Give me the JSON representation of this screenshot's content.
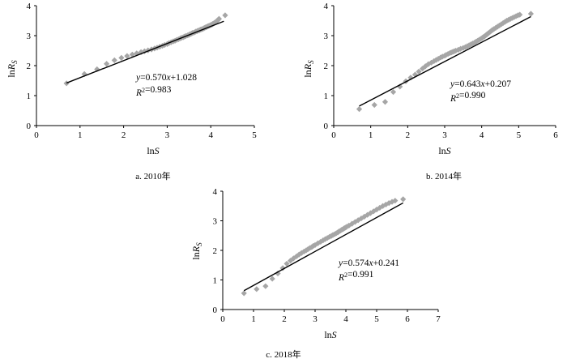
{
  "chart_data": [
    {
      "type": "scatter",
      "caption": "a.  2010年",
      "xlabel": "lnS",
      "ylabel": "lnR_S",
      "xlim": [
        0,
        5
      ],
      "ylim": [
        0,
        4
      ],
      "xticks": [
        "0",
        "1",
        "2",
        "3",
        "4",
        "5"
      ],
      "yticks": [
        "0",
        "1",
        "2",
        "3",
        "4"
      ],
      "equation": "y=0.570x+1.028",
      "r2": "R²=0.983",
      "fit": {
        "slope": 0.57,
        "intercept": 1.028,
        "x_range": [
          0.69,
          4.3
        ]
      },
      "marker_color": "#a6a6a6",
      "line_color": "#000000",
      "points": [
        [
          0.69,
          1.41
        ],
        [
          1.1,
          1.72
        ],
        [
          1.39,
          1.88
        ],
        [
          1.61,
          2.06
        ],
        [
          1.79,
          2.18
        ],
        [
          1.95,
          2.26
        ],
        [
          2.08,
          2.32
        ],
        [
          2.2,
          2.37
        ],
        [
          2.3,
          2.41
        ],
        [
          2.4,
          2.45
        ],
        [
          2.48,
          2.48
        ],
        [
          2.56,
          2.51
        ],
        [
          2.64,
          2.54
        ],
        [
          2.71,
          2.57
        ],
        [
          2.77,
          2.6
        ],
        [
          2.83,
          2.63
        ],
        [
          2.89,
          2.66
        ],
        [
          2.94,
          2.69
        ],
        [
          3.0,
          2.72
        ],
        [
          3.04,
          2.75
        ],
        [
          3.09,
          2.78
        ],
        [
          3.14,
          2.81
        ],
        [
          3.18,
          2.83
        ],
        [
          3.22,
          2.86
        ],
        [
          3.26,
          2.88
        ],
        [
          3.3,
          2.91
        ],
        [
          3.33,
          2.93
        ],
        [
          3.37,
          2.95
        ],
        [
          3.4,
          2.97
        ],
        [
          3.43,
          2.99
        ],
        [
          3.47,
          3.01
        ],
        [
          3.5,
          3.03
        ],
        [
          3.53,
          3.05
        ],
        [
          3.56,
          3.07
        ],
        [
          3.58,
          3.09
        ],
        [
          3.61,
          3.1
        ],
        [
          3.64,
          3.12
        ],
        [
          3.66,
          3.14
        ],
        [
          3.69,
          3.15
        ],
        [
          3.71,
          3.17
        ],
        [
          3.74,
          3.18
        ],
        [
          3.76,
          3.2
        ],
        [
          3.78,
          3.21
        ],
        [
          3.81,
          3.22
        ],
        [
          3.83,
          3.24
        ],
        [
          3.85,
          3.25
        ],
        [
          3.87,
          3.27
        ],
        [
          3.89,
          3.28
        ],
        [
          3.91,
          3.29
        ],
        [
          3.93,
          3.31
        ],
        [
          3.95,
          3.32
        ],
        [
          3.97,
          3.33
        ],
        [
          3.99,
          3.35
        ],
        [
          4.01,
          3.36
        ],
        [
          4.03,
          3.37
        ],
        [
          4.04,
          3.39
        ],
        [
          4.06,
          3.4
        ],
        [
          4.08,
          3.42
        ],
        [
          4.09,
          3.43
        ],
        [
          4.11,
          3.45
        ],
        [
          4.13,
          3.47
        ],
        [
          4.14,
          3.49
        ],
        [
          4.16,
          3.51
        ],
        [
          4.17,
          3.53
        ],
        [
          4.19,
          3.56
        ],
        [
          4.33,
          3.68
        ]
      ]
    },
    {
      "type": "scatter",
      "caption": "b.  2014年",
      "xlabel": "lnS",
      "ylabel": "lnR_S",
      "xlim": [
        0,
        6
      ],
      "ylim": [
        0,
        4
      ],
      "xticks": [
        "0",
        "1",
        "2",
        "3",
        "4",
        "5",
        "6"
      ],
      "yticks": [
        "0",
        "1",
        "2",
        "3",
        "4"
      ],
      "equation": "y=0.643x+0.207",
      "r2": "R²=0.990",
      "fit": {
        "slope": 0.643,
        "intercept": 0.207,
        "x_range": [
          0.69,
          5.33
        ]
      },
      "marker_color": "#a6a6a6",
      "line_color": "#000000",
      "points": [
        [
          0.69,
          0.55
        ],
        [
          1.1,
          0.69
        ],
        [
          1.39,
          0.79
        ],
        [
          1.61,
          1.12
        ],
        [
          1.79,
          1.3
        ],
        [
          1.95,
          1.48
        ],
        [
          2.08,
          1.6
        ],
        [
          2.2,
          1.7
        ],
        [
          2.3,
          1.8
        ],
        [
          2.4,
          1.9
        ],
        [
          2.48,
          1.98
        ],
        [
          2.56,
          2.05
        ],
        [
          2.64,
          2.1
        ],
        [
          2.71,
          2.15
        ],
        [
          2.77,
          2.19
        ],
        [
          2.83,
          2.23
        ],
        [
          2.89,
          2.27
        ],
        [
          2.94,
          2.3
        ],
        [
          3.0,
          2.33
        ],
        [
          3.04,
          2.36
        ],
        [
          3.09,
          2.39
        ],
        [
          3.14,
          2.42
        ],
        [
          3.18,
          2.44
        ],
        [
          3.22,
          2.46
        ],
        [
          3.26,
          2.48
        ],
        [
          3.3,
          2.5
        ],
        [
          3.37,
          2.53
        ],
        [
          3.43,
          2.56
        ],
        [
          3.5,
          2.59
        ],
        [
          3.56,
          2.62
        ],
        [
          3.61,
          2.65
        ],
        [
          3.66,
          2.68
        ],
        [
          3.71,
          2.71
        ],
        [
          3.76,
          2.74
        ],
        [
          3.81,
          2.77
        ],
        [
          3.85,
          2.8
        ],
        [
          3.89,
          2.83
        ],
        [
          3.93,
          2.86
        ],
        [
          3.97,
          2.89
        ],
        [
          4.01,
          2.92
        ],
        [
          4.04,
          2.95
        ],
        [
          4.08,
          2.98
        ],
        [
          4.11,
          3.01
        ],
        [
          4.14,
          3.04
        ],
        [
          4.17,
          3.07
        ],
        [
          4.2,
          3.1
        ],
        [
          4.23,
          3.13
        ],
        [
          4.26,
          3.16
        ],
        [
          4.29,
          3.19
        ],
        [
          4.33,
          3.22
        ],
        [
          4.38,
          3.26
        ],
        [
          4.43,
          3.3
        ],
        [
          4.48,
          3.34
        ],
        [
          4.53,
          3.38
        ],
        [
          4.58,
          3.42
        ],
        [
          4.63,
          3.46
        ],
        [
          4.68,
          3.5
        ],
        [
          4.73,
          3.53
        ],
        [
          4.78,
          3.56
        ],
        [
          4.83,
          3.59
        ],
        [
          4.88,
          3.62
        ],
        [
          4.93,
          3.65
        ],
        [
          4.98,
          3.68
        ],
        [
          5.03,
          3.7
        ],
        [
          5.33,
          3.73
        ]
      ]
    },
    {
      "type": "scatter",
      "caption": "c.  2018年",
      "xlabel": "lnS",
      "ylabel": "lnR_S",
      "xlim": [
        0,
        7
      ],
      "ylim": [
        0,
        4
      ],
      "xticks": [
        "0",
        "1",
        "2",
        "3",
        "4",
        "5",
        "6",
        "7"
      ],
      "yticks": [
        "0",
        "1",
        "2",
        "3",
        "4"
      ],
      "equation": "y=0.574x+0.241",
      "r2": "R²=0.991",
      "fit": {
        "slope": 0.574,
        "intercept": 0.241,
        "x_range": [
          0.69,
          5.86
        ]
      },
      "marker_color": "#a6a6a6",
      "line_color": "#000000",
      "points": [
        [
          0.69,
          0.55
        ],
        [
          1.1,
          0.69
        ],
        [
          1.39,
          0.79
        ],
        [
          1.61,
          1.04
        ],
        [
          1.79,
          1.22
        ],
        [
          1.95,
          1.4
        ],
        [
          2.08,
          1.55
        ],
        [
          2.2,
          1.65
        ],
        [
          2.3,
          1.73
        ],
        [
          2.4,
          1.8
        ],
        [
          2.48,
          1.86
        ],
        [
          2.56,
          1.91
        ],
        [
          2.64,
          1.96
        ],
        [
          2.71,
          2.0
        ],
        [
          2.77,
          2.04
        ],
        [
          2.83,
          2.08
        ],
        [
          2.89,
          2.11
        ],
        [
          2.94,
          2.15
        ],
        [
          3.0,
          2.18
        ],
        [
          3.09,
          2.24
        ],
        [
          3.18,
          2.29
        ],
        [
          3.26,
          2.34
        ],
        [
          3.33,
          2.38
        ],
        [
          3.4,
          2.42
        ],
        [
          3.47,
          2.46
        ],
        [
          3.53,
          2.49
        ],
        [
          3.58,
          2.52
        ],
        [
          3.64,
          2.55
        ],
        [
          3.69,
          2.58
        ],
        [
          3.74,
          2.61
        ],
        [
          3.78,
          2.64
        ],
        [
          3.83,
          2.67
        ],
        [
          3.87,
          2.7
        ],
        [
          3.91,
          2.72
        ],
        [
          3.95,
          2.75
        ],
        [
          3.99,
          2.77
        ],
        [
          4.03,
          2.8
        ],
        [
          4.1,
          2.84
        ],
        [
          4.2,
          2.9
        ],
        [
          4.3,
          2.96
        ],
        [
          4.4,
          3.02
        ],
        [
          4.5,
          3.08
        ],
        [
          4.6,
          3.14
        ],
        [
          4.7,
          3.2
        ],
        [
          4.8,
          3.26
        ],
        [
          4.9,
          3.32
        ],
        [
          5.0,
          3.38
        ],
        [
          5.1,
          3.44
        ],
        [
          5.2,
          3.5
        ],
        [
          5.3,
          3.55
        ],
        [
          5.4,
          3.6
        ],
        [
          5.5,
          3.64
        ],
        [
          5.6,
          3.68
        ],
        [
          5.86,
          3.73
        ]
      ]
    }
  ]
}
